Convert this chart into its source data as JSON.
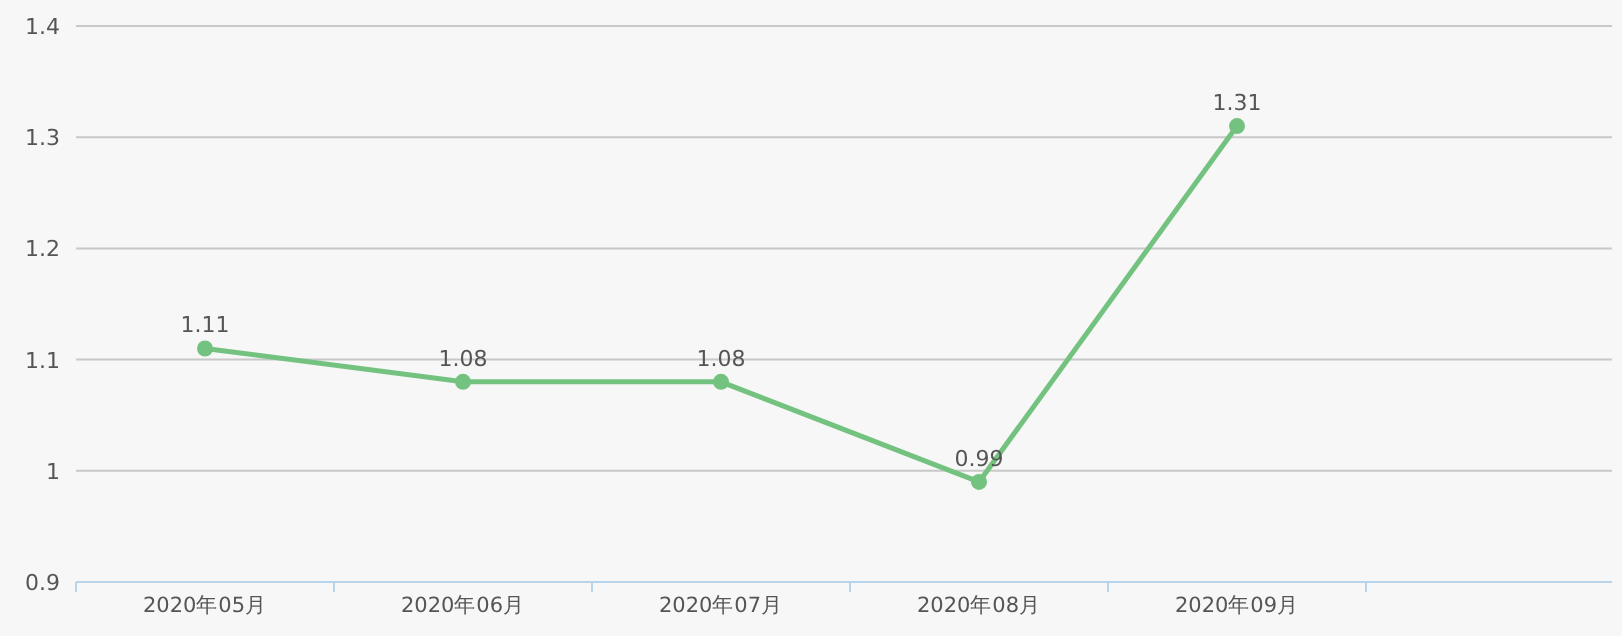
{
  "chart_data": {
    "type": "line",
    "categories": [
      "2020年05月",
      "2020年06月",
      "2020年07月",
      "2020年08月",
      "2020年09月"
    ],
    "values": [
      1.11,
      1.08,
      1.08,
      0.99,
      1.31
    ],
    "color": "#74c27f",
    "ylim": [
      0.9,
      1.4
    ],
    "yticks": [
      0.9,
      1,
      1.1,
      1.2,
      1.3,
      1.4
    ],
    "grid": "y",
    "marker": "circle",
    "data_labels": true
  }
}
